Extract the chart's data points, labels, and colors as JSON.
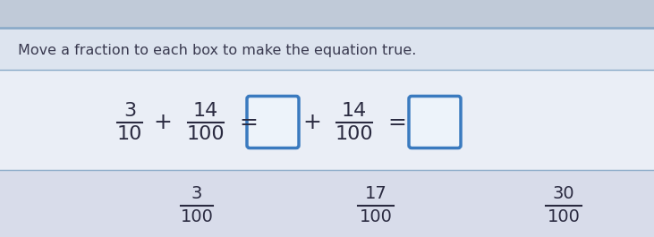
{
  "bg_top": "#c8d2e0",
  "bg_white": "#e8ecf4",
  "bg_instruction": "#dde4ef",
  "bg_equation": "#eaeef6",
  "bg_bottom": "#d8dcea",
  "instruction_text": "Move a fraction to each box to make the equation true.",
  "instruction_color": "#3a3a50",
  "instruction_fontsize": 11.5,
  "equation_color": "#2a2a40",
  "box_edge_color": "#3a7abf",
  "box_face_color": "#edf3fa",
  "separator_color": "#8aaac8",
  "top_icons_bg": "#c0cad8"
}
